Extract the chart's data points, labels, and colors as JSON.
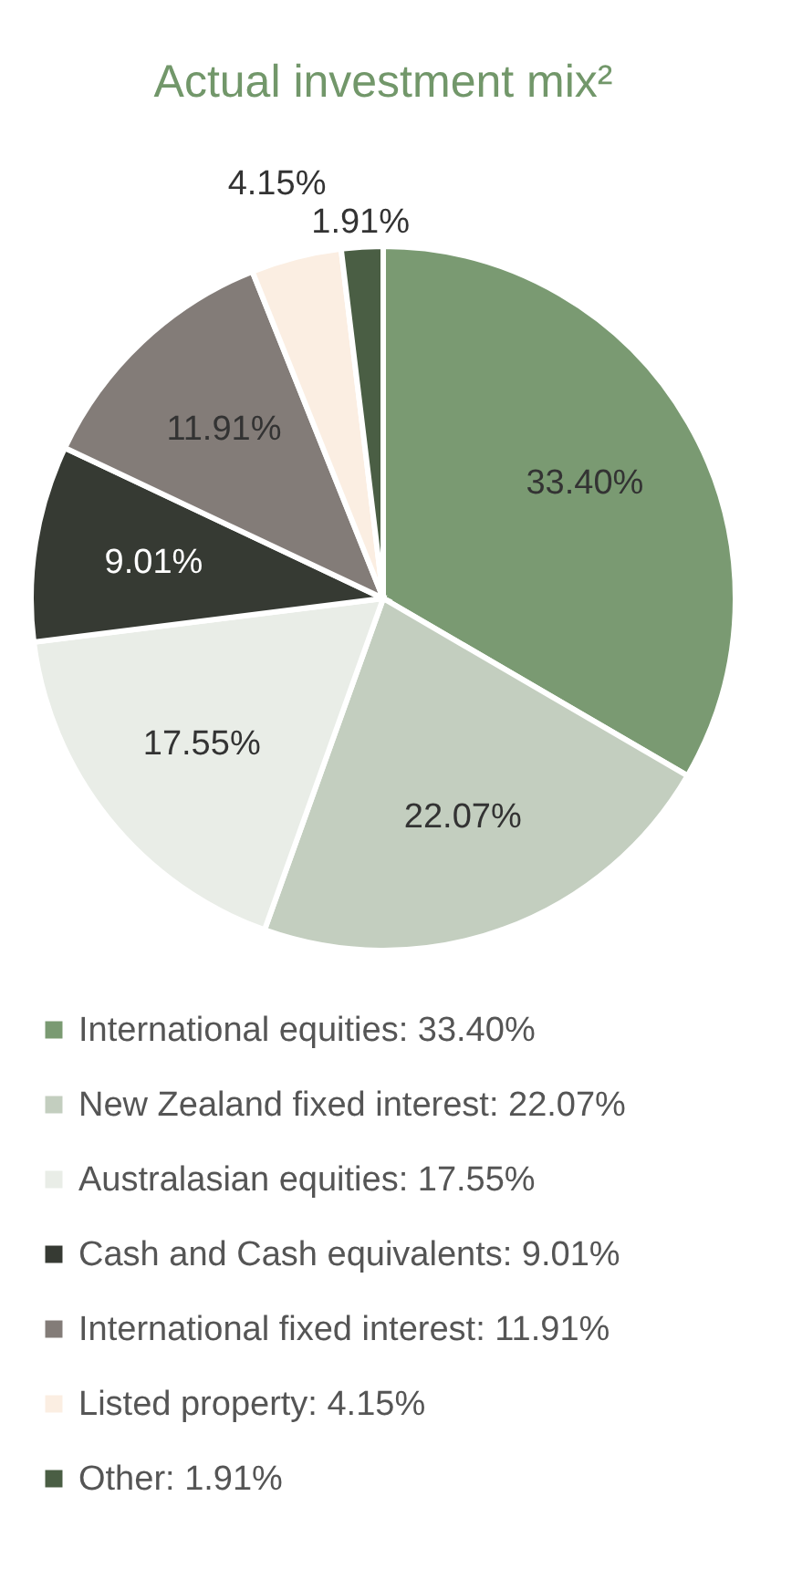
{
  "chart_data": {
    "type": "pie",
    "title": "Actual investment mix²",
    "categories": [
      "International equities",
      "New Zealand fixed interest",
      "Australasian equities",
      "Cash and Cash equivalents",
      "International fixed interest",
      "Listed property",
      "Other"
    ],
    "values": [
      33.4,
      22.07,
      17.55,
      9.01,
      11.91,
      4.15,
      1.91
    ],
    "value_labels": [
      "33.40%",
      "22.07%",
      "17.55%",
      "9.01%",
      "11.91%",
      "4.15%",
      "1.91%"
    ],
    "colors": [
      "#7a9a72",
      "#c3cebf",
      "#e9ede7",
      "#363a33",
      "#837c78",
      "#fbeee2",
      "#4a5e44"
    ],
    "legend": "bottom"
  }
}
